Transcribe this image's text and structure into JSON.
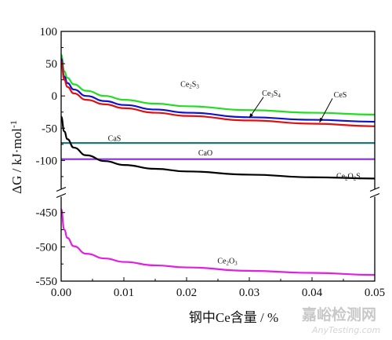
{
  "chart_data": {
    "type": "line",
    "xlabel": "钢中Ce含量 / %",
    "ylabel": "ΔG / kJ·mol",
    "ylabel_sup": "-1",
    "xlim": [
      0,
      0.05
    ],
    "x_ticks": [
      "0.00",
      "0.01",
      "0.02",
      "0.03",
      "0.04",
      "0.05"
    ],
    "y_ticks_upper": [
      "100",
      "50",
      "0",
      "-50",
      "-100"
    ],
    "y_ticks_lower": [
      "-450",
      "-500",
      "-550"
    ],
    "axis_break": true,
    "upper_ylim": [
      -130,
      100
    ],
    "lower_ylim": [
      -550,
      -440
    ],
    "series": [
      {
        "name": "Ce2S3",
        "label_main": "Ce",
        "label_parts": [
          [
            "Ce",
            ""
          ],
          [
            "2",
            "sub"
          ],
          [
            "S",
            ""
          ],
          [
            "3",
            "sub"
          ]
        ],
        "color": "#22dd22",
        "x": [
          0.0,
          0.0005,
          0.001,
          0.002,
          0.004,
          0.007,
          0.01,
          0.015,
          0.02,
          0.03,
          0.04,
          0.05
        ],
        "values": [
          64,
          38,
          28,
          18,
          8,
          0,
          -6,
          -12,
          -16,
          -22,
          -26,
          -29
        ]
      },
      {
        "name": "Ce3S4",
        "label_parts": [
          [
            "Ce",
            ""
          ],
          [
            "3",
            "sub"
          ],
          [
            "S",
            ""
          ],
          [
            "4",
            "sub"
          ]
        ],
        "color": "#1111cc",
        "x": [
          0.0,
          0.0005,
          0.001,
          0.002,
          0.004,
          0.007,
          0.01,
          0.015,
          0.02,
          0.03,
          0.04,
          0.05
        ],
        "values": [
          58,
          30,
          20,
          10,
          0,
          -8,
          -14,
          -21,
          -26,
          -33,
          -37,
          -40
        ]
      },
      {
        "name": "CeS",
        "label_parts": [
          [
            "CeS",
            ""
          ]
        ],
        "color": "#dd1111",
        "x": [
          0.0,
          0.0005,
          0.001,
          0.002,
          0.004,
          0.007,
          0.01,
          0.015,
          0.02,
          0.03,
          0.04,
          0.05
        ],
        "values": [
          54,
          25,
          14,
          4,
          -6,
          -13,
          -19,
          -26,
          -31,
          -38,
          -43,
          -47
        ]
      },
      {
        "name": "CaS",
        "label_parts": [
          [
            "CaS",
            ""
          ]
        ],
        "color": "#1a7a7a",
        "x": [
          0.0,
          0.05
        ],
        "values": [
          -73,
          -73
        ]
      },
      {
        "name": "CaO",
        "label_parts": [
          [
            "CaO",
            ""
          ]
        ],
        "color": "#8a2be2",
        "x": [
          0.0,
          0.05
        ],
        "values": [
          -98,
          -98
        ]
      },
      {
        "name": "Ce2O2S",
        "label_parts": [
          [
            "Ce",
            ""
          ],
          [
            "2",
            "sub"
          ],
          [
            "O",
            ""
          ],
          [
            "2",
            "sub"
          ],
          [
            "S",
            ""
          ]
        ],
        "color": "#000000",
        "x": [
          0.0,
          0.0005,
          0.001,
          0.002,
          0.004,
          0.007,
          0.01,
          0.015,
          0.02,
          0.03,
          0.04,
          0.05
        ],
        "values": [
          -32,
          -55,
          -67,
          -80,
          -92,
          -101,
          -107,
          -113,
          -117,
          -122,
          -126,
          -128
        ]
      },
      {
        "name": "Ce2O3",
        "label_parts": [
          [
            "Ce",
            ""
          ],
          [
            "2",
            "sub"
          ],
          [
            "O",
            ""
          ],
          [
            "3",
            "sub"
          ]
        ],
        "color": "#e020e0",
        "x": [
          0.0,
          0.0005,
          0.001,
          0.002,
          0.004,
          0.007,
          0.01,
          0.015,
          0.02,
          0.03,
          0.04,
          0.05
        ],
        "values": [
          -445,
          -475,
          -487,
          -499,
          -510,
          -517,
          -522,
          -527,
          -530,
          -535,
          -538,
          -541
        ]
      }
    ]
  },
  "watermark": {
    "cn": "嘉峪检测网",
    "en": "AnyTesting.com"
  }
}
